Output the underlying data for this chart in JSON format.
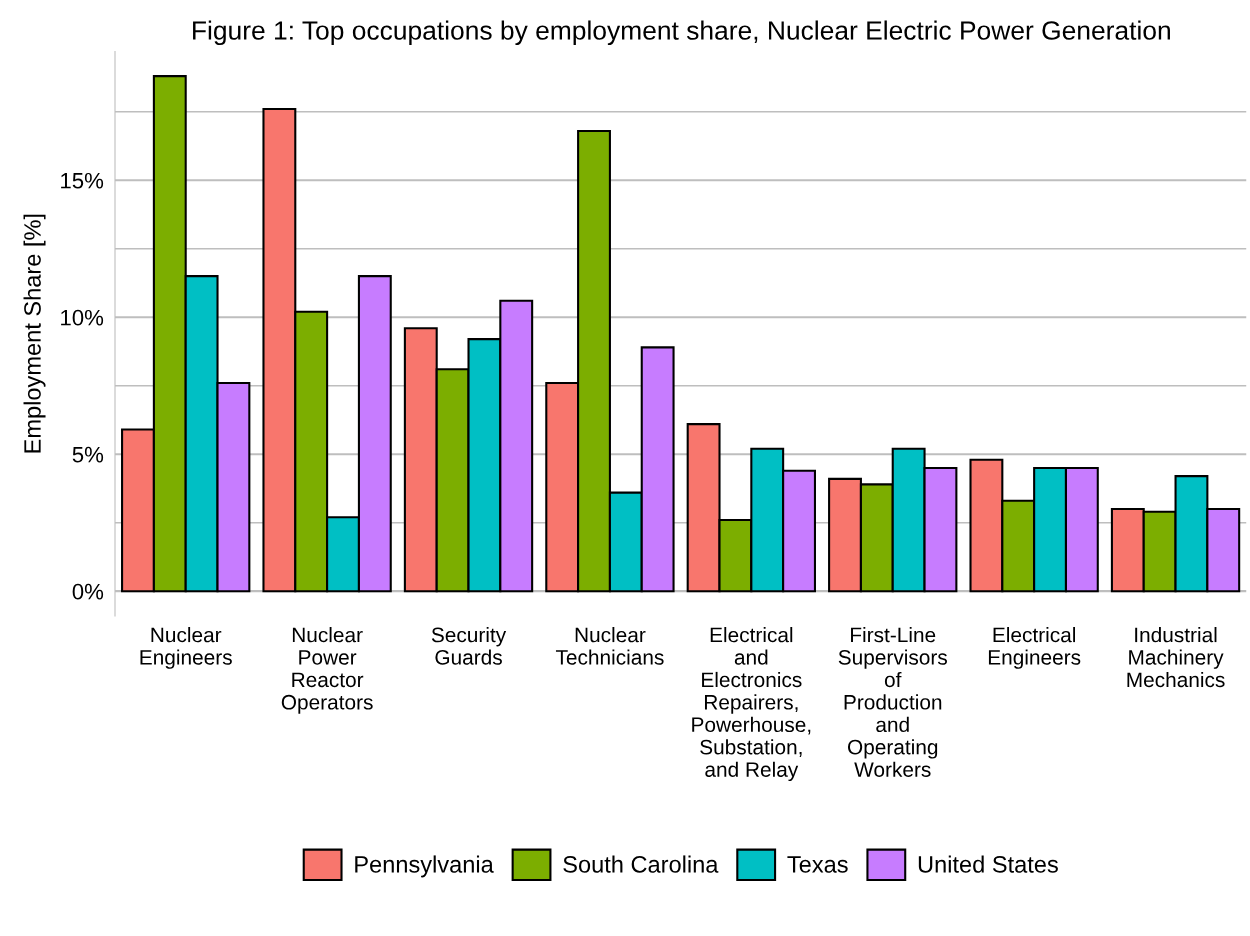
{
  "chart_data": {
    "type": "bar",
    "title": "Figure 1: Top occupations by employment share, Nuclear Electric Power Generation",
    "ylabel": "Employment Share [%]",
    "categories": [
      "Nuclear Engineers",
      "Nuclear Power Reactor Operators",
      "Security Guards",
      "Nuclear Technicians",
      "Electrical and Electronics Repairers, Powerhouse, Substation, and Relay",
      "First-Line Supervisors of Production and Operating Workers",
      "Electrical Engineers",
      "Industrial Machinery Mechanics"
    ],
    "series": [
      {
        "name": "Pennsylvania",
        "color": "#f8766d",
        "values": [
          5.9,
          17.6,
          9.6,
          7.6,
          6.1,
          4.1,
          4.8,
          3.0
        ]
      },
      {
        "name": "South Carolina",
        "color": "#7cae00",
        "values": [
          18.8,
          10.2,
          8.1,
          16.8,
          2.6,
          3.9,
          3.3,
          2.9
        ]
      },
      {
        "name": "Texas",
        "color": "#00bfc4",
        "values": [
          11.5,
          2.7,
          9.2,
          3.6,
          5.2,
          5.2,
          4.5,
          4.2
        ]
      },
      {
        "name": "United States",
        "color": "#c77cff",
        "values": [
          7.6,
          11.5,
          10.6,
          8.9,
          4.4,
          4.5,
          4.5,
          3.0
        ]
      }
    ],
    "yticks": [
      {
        "value": 0,
        "label": "0%"
      },
      {
        "value": 2.5,
        "label": null
      },
      {
        "value": 5,
        "label": "5%"
      },
      {
        "value": 7.5,
        "label": null
      },
      {
        "value": 10,
        "label": "10%"
      },
      {
        "value": 12.5,
        "label": null
      },
      {
        "value": 15,
        "label": "15%"
      },
      {
        "value": 17.5,
        "label": null
      }
    ],
    "ylim": [
      -0.9,
      19.7
    ],
    "grid": "y",
    "legend": "bottom"
  }
}
